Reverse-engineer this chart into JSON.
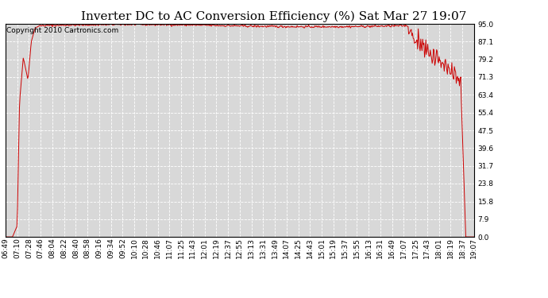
{
  "title": "Inverter DC to AC Conversion Efficiency (%) Sat Mar 27 19:07",
  "copyright": "Copyright 2010 Cartronics.com",
  "line_color": "#cc0000",
  "bg_color": "#ffffff",
  "plot_bg_color": "#d8d8d8",
  "grid_color": "#ffffff",
  "ytick_labels": [
    0.0,
    7.9,
    15.8,
    23.8,
    31.7,
    39.6,
    47.5,
    55.4,
    63.4,
    71.3,
    79.2,
    87.1,
    95.0
  ],
  "xtick_labels": [
    "06:49",
    "07:10",
    "07:28",
    "07:46",
    "08:04",
    "08:22",
    "08:40",
    "08:58",
    "09:16",
    "09:34",
    "09:52",
    "10:10",
    "10:28",
    "10:46",
    "11:07",
    "11:25",
    "11:43",
    "12:01",
    "12:19",
    "12:37",
    "12:55",
    "13:13",
    "13:31",
    "13:49",
    "14:07",
    "14:25",
    "14:43",
    "15:01",
    "15:19",
    "15:37",
    "15:55",
    "16:13",
    "16:31",
    "16:49",
    "17:07",
    "17:25",
    "17:43",
    "18:01",
    "18:19",
    "18:37",
    "19:07"
  ],
  "title_fontsize": 11,
  "tick_fontsize": 6.5,
  "copyright_fontsize": 6.5
}
